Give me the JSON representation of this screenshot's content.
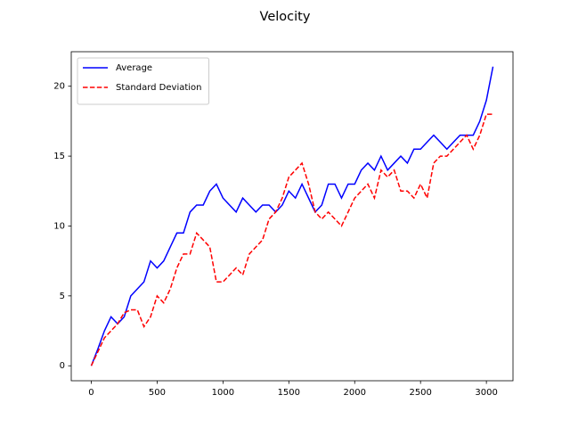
{
  "chart_data": {
    "type": "line",
    "title": "Velocity",
    "x": [
      0,
      50,
      100,
      150,
      200,
      250,
      300,
      350,
      400,
      450,
      500,
      550,
      600,
      650,
      700,
      750,
      800,
      850,
      900,
      950,
      1000,
      1050,
      1100,
      1150,
      1200,
      1250,
      1300,
      1350,
      1400,
      1450,
      1500,
      1550,
      1600,
      1650,
      1700,
      1750,
      1800,
      1850,
      1900,
      1950,
      2000,
      2050,
      2100,
      2150,
      2200,
      2250,
      2300,
      2350,
      2400,
      2450,
      2500,
      2550,
      2600,
      2650,
      2700,
      2750,
      2800,
      2850,
      2900,
      2950,
      3000,
      3050
    ],
    "series": [
      {
        "name": "Average",
        "color": "#0000ff",
        "dash": false,
        "values": [
          0,
          1.2,
          2.5,
          3.5,
          3.0,
          3.5,
          5.0,
          5.5,
          6.0,
          7.5,
          7.0,
          7.5,
          8.5,
          9.5,
          9.5,
          11.0,
          11.5,
          11.5,
          12.5,
          13.0,
          12.0,
          11.5,
          11.0,
          12.0,
          11.5,
          11.0,
          11.5,
          11.5,
          11.0,
          11.5,
          12.5,
          12.0,
          13.0,
          12.0,
          11.0,
          11.5,
          13.0,
          13.0,
          12.0,
          13.0,
          13.0,
          14.0,
          14.5,
          14.0,
          15.0,
          14.0,
          14.5,
          15.0,
          14.5,
          15.5,
          15.5,
          16.0,
          16.5,
          16.0,
          15.5,
          16.0,
          16.5,
          16.5,
          16.5,
          17.5,
          19.0,
          21.4
        ]
      },
      {
        "name": "Standard Deviation",
        "color": "#ff0000",
        "dash": true,
        "values": [
          0,
          1.0,
          2.0,
          2.5,
          3.0,
          3.8,
          4.0,
          4.0,
          2.8,
          3.5,
          5.0,
          4.5,
          5.5,
          7.0,
          8.0,
          8.0,
          9.5,
          9.0,
          8.5,
          6.0,
          6.0,
          6.5,
          7.0,
          6.5,
          8.0,
          8.5,
          9.0,
          10.5,
          11.0,
          12.0,
          13.5,
          14.0,
          14.5,
          13.0,
          11.0,
          10.5,
          11.0,
          10.5,
          10.0,
          11.0,
          12.0,
          12.5,
          13.0,
          12.0,
          14.0,
          13.5,
          14.0,
          12.5,
          12.5,
          12.0,
          13.0,
          12.0,
          14.5,
          15.0,
          15.0,
          15.5,
          16.0,
          16.5,
          15.5,
          16.5,
          18.0,
          18.0
        ]
      }
    ],
    "xlim": [
      -152,
      3202
    ],
    "ylim": [
      -1.07,
      22.47
    ],
    "xticks": [
      0,
      500,
      1000,
      1500,
      2000,
      2500,
      3000
    ],
    "yticks": [
      0,
      5,
      10,
      15,
      20
    ],
    "legend": "upper left",
    "grid": false
  }
}
